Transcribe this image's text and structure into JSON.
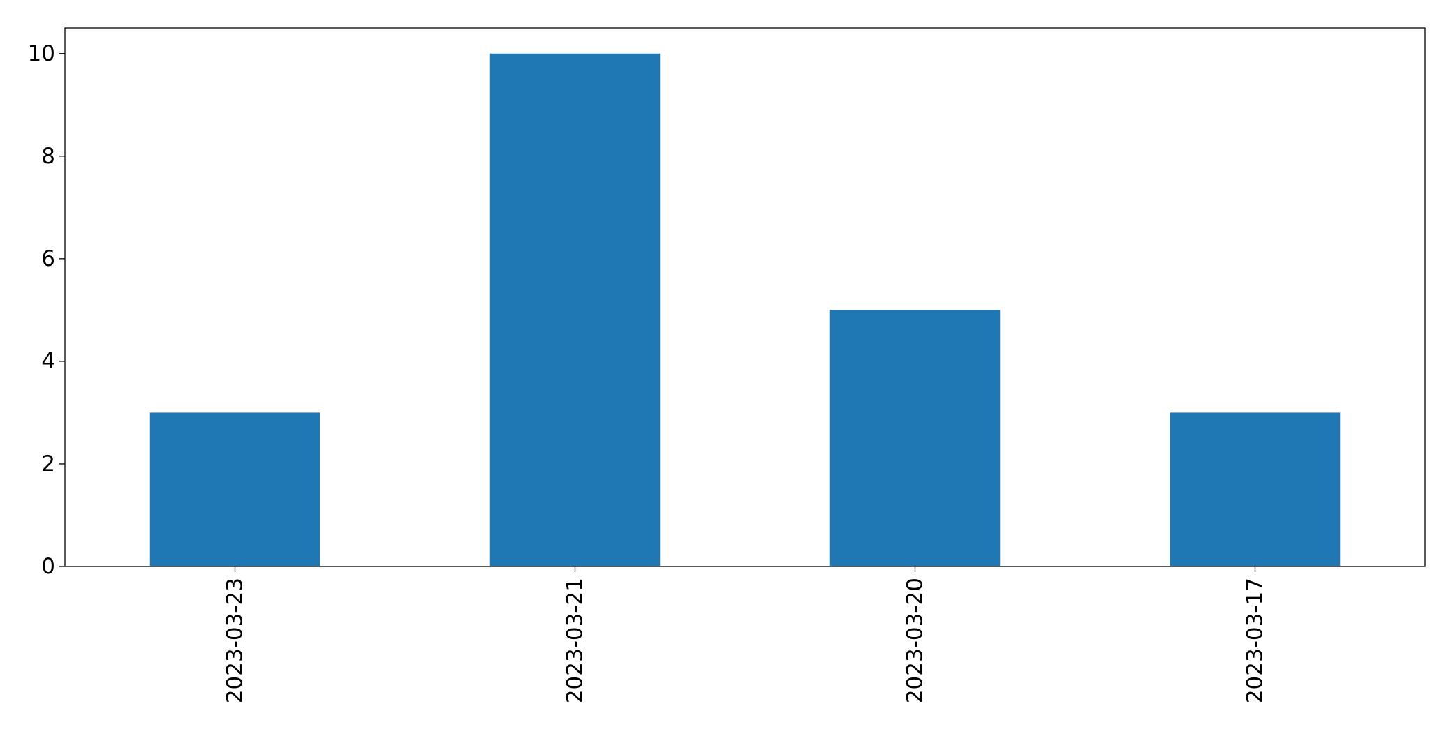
{
  "chart_data": {
    "type": "bar",
    "title": "",
    "xlabel": "",
    "ylabel": "",
    "categories": [
      "2023-03-23",
      "2023-03-21",
      "2023-03-20",
      "2023-03-17"
    ],
    "values": [
      3,
      10,
      5,
      3
    ],
    "ylim": [
      0,
      10.5
    ],
    "yticks": [
      "0",
      "2",
      "4",
      "6",
      "8",
      "10"
    ],
    "grid": false,
    "legend": "none",
    "bar_color": "#1f77b4",
    "xtick_rotation": 90
  }
}
